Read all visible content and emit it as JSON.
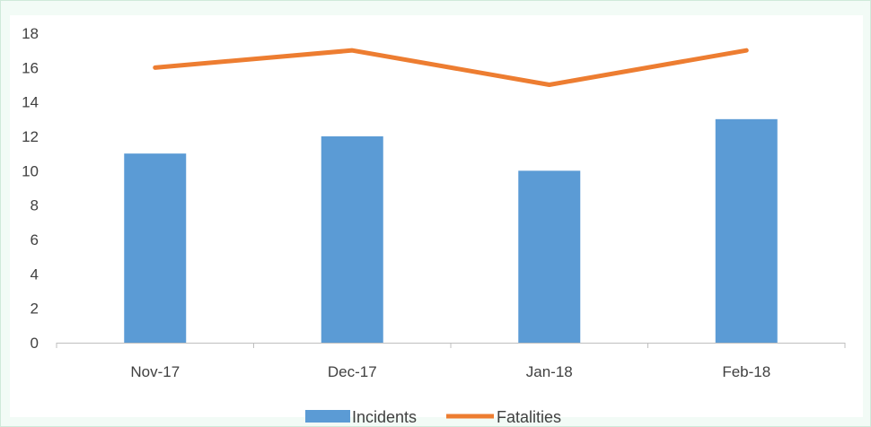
{
  "chart_data": {
    "type": "bar",
    "categories": [
      "Nov-17",
      "Dec-17",
      "Jan-18",
      "Feb-18"
    ],
    "series": [
      {
        "name": "Incidents",
        "type": "bar",
        "color": "#5b9bd5",
        "values": [
          11,
          12,
          10,
          13
        ]
      },
      {
        "name": "Fatalities",
        "type": "line",
        "color": "#ed7d31",
        "values": [
          16,
          17,
          15,
          17
        ]
      }
    ],
    "title": "",
    "xlabel": "",
    "ylabel": "",
    "ylim": [
      0,
      18
    ],
    "yticks": [
      "0",
      "2",
      "4",
      "6",
      "8",
      "10",
      "12",
      "14",
      "16",
      "18"
    ],
    "grid": false,
    "legend_position": "bottom"
  }
}
